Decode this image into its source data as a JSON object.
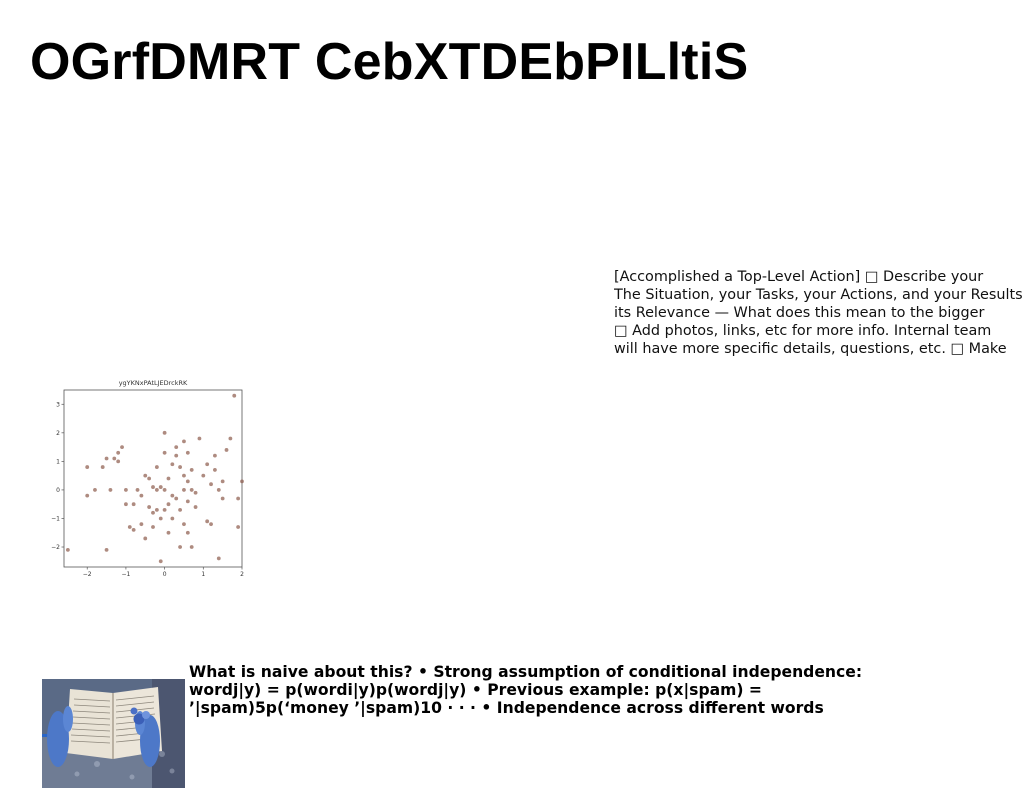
{
  "page": {
    "title": "OGrfDMRT CebXTDEbPILltiS"
  },
  "notes": {
    "lines": [
      "[Accomplished a Top-Level Action] □ Describe your",
      "The Situation, your Tasks, your Actions, and your Results □",
      "its Relevance — What does this mean to the bigger",
      "□ Add photos, links, etc for more info. Internal team",
      "will have more specific details, questions, etc. □ Make"
    ]
  },
  "naive": {
    "lines": [
      "What is naive about this? • Strong assumption of conditional independence:",
      "wordj|y) = p(wordi|y)p(wordj|y) • Previous example: p(x|spam) =",
      "’|spam)5p(‘money ’|spam)10 · · · • Independence across different words"
    ]
  },
  "chart_data": {
    "type": "scatter",
    "title": "ygYKNxPAtLJEDrckRK",
    "xlim": [
      -2.6,
      2.0
    ],
    "ylim": [
      -2.7,
      3.5
    ],
    "xticks": [
      -2,
      -1,
      0,
      1,
      2
    ],
    "yticks": [
      -2,
      -1,
      0,
      1,
      2,
      3
    ],
    "point_color": "#8b5a4a",
    "points": [
      [
        -2.5,
        -2.1
      ],
      [
        -2.0,
        -0.2
      ],
      [
        -2.0,
        0.8
      ],
      [
        -1.8,
        0.0
      ],
      [
        -1.6,
        0.8
      ],
      [
        -1.5,
        1.1
      ],
      [
        -1.5,
        -2.1
      ],
      [
        -1.4,
        0.0
      ],
      [
        -1.3,
        1.1
      ],
      [
        -1.2,
        1.0
      ],
      [
        -1.2,
        1.3
      ],
      [
        -1.1,
        1.5
      ],
      [
        -1.0,
        0.0
      ],
      [
        -1.0,
        -0.5
      ],
      [
        -0.9,
        -1.3
      ],
      [
        -0.8,
        -1.4
      ],
      [
        -0.8,
        -0.5
      ],
      [
        -0.7,
        0.0
      ],
      [
        -0.6,
        -0.2
      ],
      [
        -0.6,
        -1.2
      ],
      [
        -0.5,
        -1.7
      ],
      [
        -0.5,
        0.5
      ],
      [
        -0.4,
        0.4
      ],
      [
        -0.4,
        -0.6
      ],
      [
        -0.3,
        -0.8
      ],
      [
        -0.3,
        0.1
      ],
      [
        -0.3,
        -1.3
      ],
      [
        -0.2,
        0.8
      ],
      [
        -0.2,
        -0.7
      ],
      [
        -0.2,
        0.0
      ],
      [
        -0.1,
        -1.0
      ],
      [
        -0.1,
        0.1
      ],
      [
        -0.1,
        -2.5
      ],
      [
        0.0,
        2.0
      ],
      [
        0.0,
        -0.7
      ],
      [
        0.0,
        0.0
      ],
      [
        0.0,
        1.3
      ],
      [
        0.1,
        -0.5
      ],
      [
        0.1,
        0.4
      ],
      [
        0.1,
        -1.5
      ],
      [
        0.2,
        -0.2
      ],
      [
        0.2,
        0.9
      ],
      [
        0.2,
        -1.0
      ],
      [
        0.3,
        -0.3
      ],
      [
        0.3,
        1.2
      ],
      [
        0.3,
        1.5
      ],
      [
        0.4,
        0.8
      ],
      [
        0.4,
        -0.7
      ],
      [
        0.4,
        -2.0
      ],
      [
        0.5,
        0.5
      ],
      [
        0.5,
        0.0
      ],
      [
        0.5,
        -1.2
      ],
      [
        0.5,
        1.7
      ],
      [
        0.6,
        0.3
      ],
      [
        0.6,
        1.3
      ],
      [
        0.6,
        -1.5
      ],
      [
        0.6,
        -0.4
      ],
      [
        0.7,
        0.7
      ],
      [
        0.7,
        -2.0
      ],
      [
        0.7,
        0.0
      ],
      [
        0.8,
        -0.6
      ],
      [
        0.8,
        -0.1
      ],
      [
        0.9,
        1.8
      ],
      [
        1.0,
        0.5
      ],
      [
        1.1,
        0.9
      ],
      [
        1.1,
        -1.1
      ],
      [
        1.2,
        0.2
      ],
      [
        1.2,
        -1.2
      ],
      [
        1.3,
        0.7
      ],
      [
        1.3,
        1.2
      ],
      [
        1.4,
        -2.4
      ],
      [
        1.4,
        0.0
      ],
      [
        1.5,
        0.3
      ],
      [
        1.5,
        -0.3
      ],
      [
        1.6,
        1.4
      ],
      [
        1.7,
        1.8
      ],
      [
        1.8,
        3.3
      ],
      [
        1.9,
        -0.3
      ],
      [
        1.9,
        -1.3
      ],
      [
        2.0,
        0.3
      ]
    ]
  }
}
